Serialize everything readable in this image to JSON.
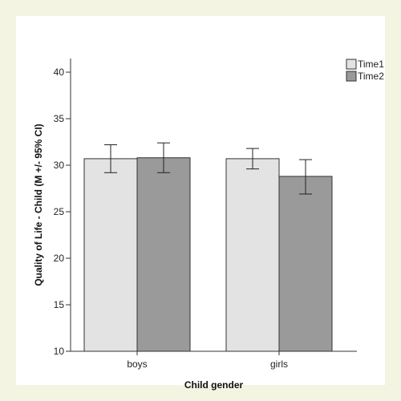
{
  "chart_data": {
    "type": "bar",
    "categories": [
      "boys",
      "girls"
    ],
    "series": [
      {
        "name": "Time1",
        "values": [
          30.7,
          30.7
        ],
        "ci_low": [
          29.2,
          29.6
        ],
        "ci_high": [
          32.2,
          31.8
        ],
        "color": "#e3e3e3"
      },
      {
        "name": "Time2",
        "values": [
          30.8,
          28.8
        ],
        "ci_low": [
          29.2,
          26.9
        ],
        "ci_high": [
          32.4,
          30.6
        ],
        "color": "#9a9a9a"
      }
    ],
    "xlabel": "Child gender",
    "ylabel": "Quality of Life - Child (M +/- 95% CI)",
    "ylim": [
      10,
      40
    ],
    "yticks": [
      "10",
      "15",
      "20",
      "25",
      "30",
      "35",
      "40"
    ],
    "grid": false,
    "legend_position": "top-right"
  },
  "colors": {
    "outer_background": "#f4f4e2",
    "plot_background": "#ffffff",
    "axis": "#333333"
  }
}
